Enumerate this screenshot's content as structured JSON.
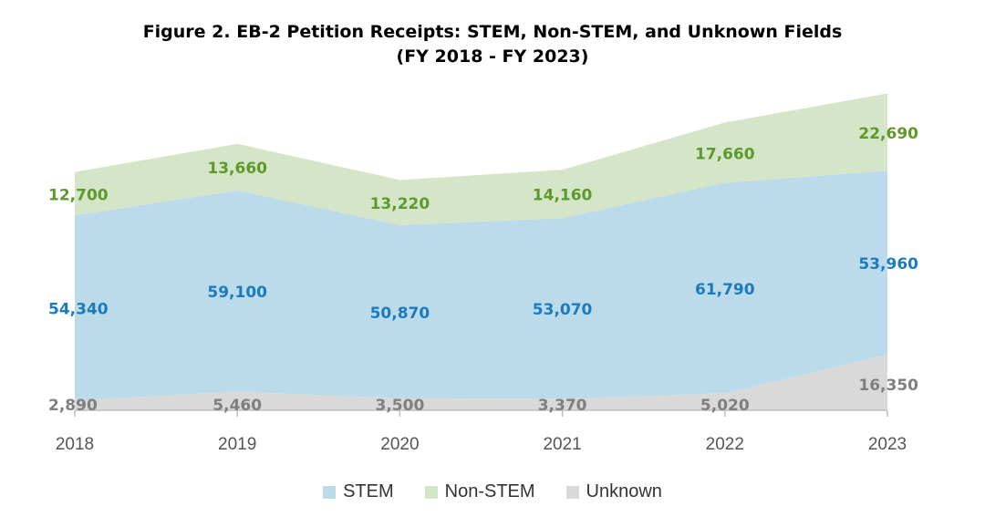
{
  "chart_data": {
    "type": "area",
    "stacked": true,
    "title": "Figure 2. EB-2 Petition Receipts: STEM, Non-STEM, and Unknown Fields",
    "subtitle": "(FY 2018 - FY 2023)",
    "categories": [
      "2018",
      "2019",
      "2020",
      "2021",
      "2022",
      "2023"
    ],
    "series": [
      {
        "name": "Unknown",
        "color": "#d9d9d9",
        "label_color": "#7f7f7f",
        "values": [
          2890,
          5460,
          3500,
          3370,
          5020,
          16350
        ],
        "labels": [
          "2,890",
          "5,460",
          "3,500",
          "3,370",
          "5,020",
          "16,350"
        ]
      },
      {
        "name": "STEM",
        "color": "#bcdbea",
        "label_color": "#1b7bbd",
        "values": [
          54340,
          59100,
          50870,
          53070,
          61790,
          53960
        ],
        "labels": [
          "54,340",
          "59,100",
          "50,870",
          "53,070",
          "61,790",
          "53,960"
        ]
      },
      {
        "name": "Non-STEM",
        "color": "#d5e6c8",
        "label_color": "#5c9a2c",
        "values": [
          12700,
          13660,
          13220,
          14160,
          17660,
          22690
        ],
        "labels": [
          "12,700",
          "13,660",
          "13,220",
          "14,160",
          "17,660",
          "22,690"
        ]
      }
    ],
    "legend": [
      "STEM",
      "Non-STEM",
      "Unknown"
    ],
    "legend_position": "bottom",
    "ylim": [
      0,
      95000
    ],
    "grid": false
  }
}
